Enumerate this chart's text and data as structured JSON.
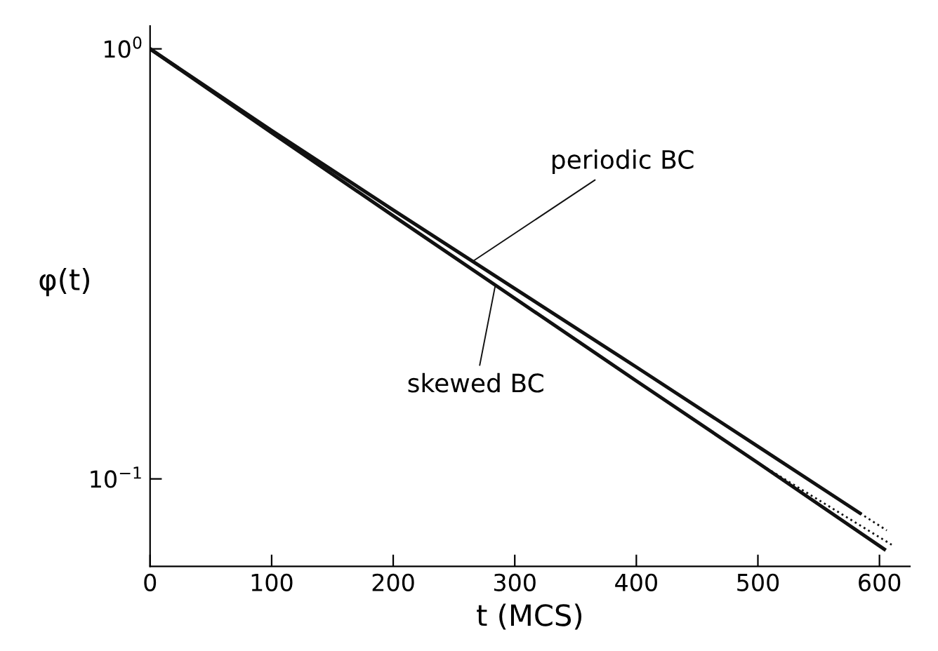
{
  "chart_data": {
    "type": "line",
    "xlabel": "t (MCS)",
    "ylabel": "φ(t)",
    "log": "y",
    "xlim": [
      0,
      625
    ],
    "ylim": [
      0.0626,
      1.13
    ],
    "xticks": [
      0,
      100,
      200,
      300,
      400,
      500,
      600
    ],
    "yticks": [
      {
        "value": 1,
        "label": "10$^{0}$"
      },
      {
        "value": 0.1,
        "label": "10$^{−1}$"
      }
    ],
    "grid": false,
    "legend": false,
    "marker": "none",
    "series": [
      {
        "color": "#111111",
        "line_style": "solid",
        "x": [
          0,
          100,
          200,
          300,
          400,
          500,
          584
        ],
        "values": [
          1,
          0.646,
          0.422,
          0.277,
          0.182,
          0.119,
          0.0832
        ]
      },
      {
        "color": "#111111",
        "line_style": "dotted",
        "x": [
          584,
          606
        ],
        "values": [
          0.0832,
          0.0759
        ]
      },
      {
        "color": "#111111",
        "line_style": "solid",
        "x": [
          0,
          100,
          200,
          300,
          400,
          500,
          604
        ],
        "values": [
          1,
          0.638,
          0.409,
          0.263,
          0.169,
          0.109,
          0.0686
        ]
      },
      {
        "color": "#111111",
        "line_style": "dotted",
        "x": [
          500,
          610
        ],
        "values": [
          0.109,
          0.0703
        ]
      }
    ],
    "annotations": [
      {
        "text": "periodic BC",
        "x": 265,
        "y": 0.32
      },
      {
        "text": "skewed BC",
        "x": 284,
        "y": 0.282
      }
    ]
  }
}
